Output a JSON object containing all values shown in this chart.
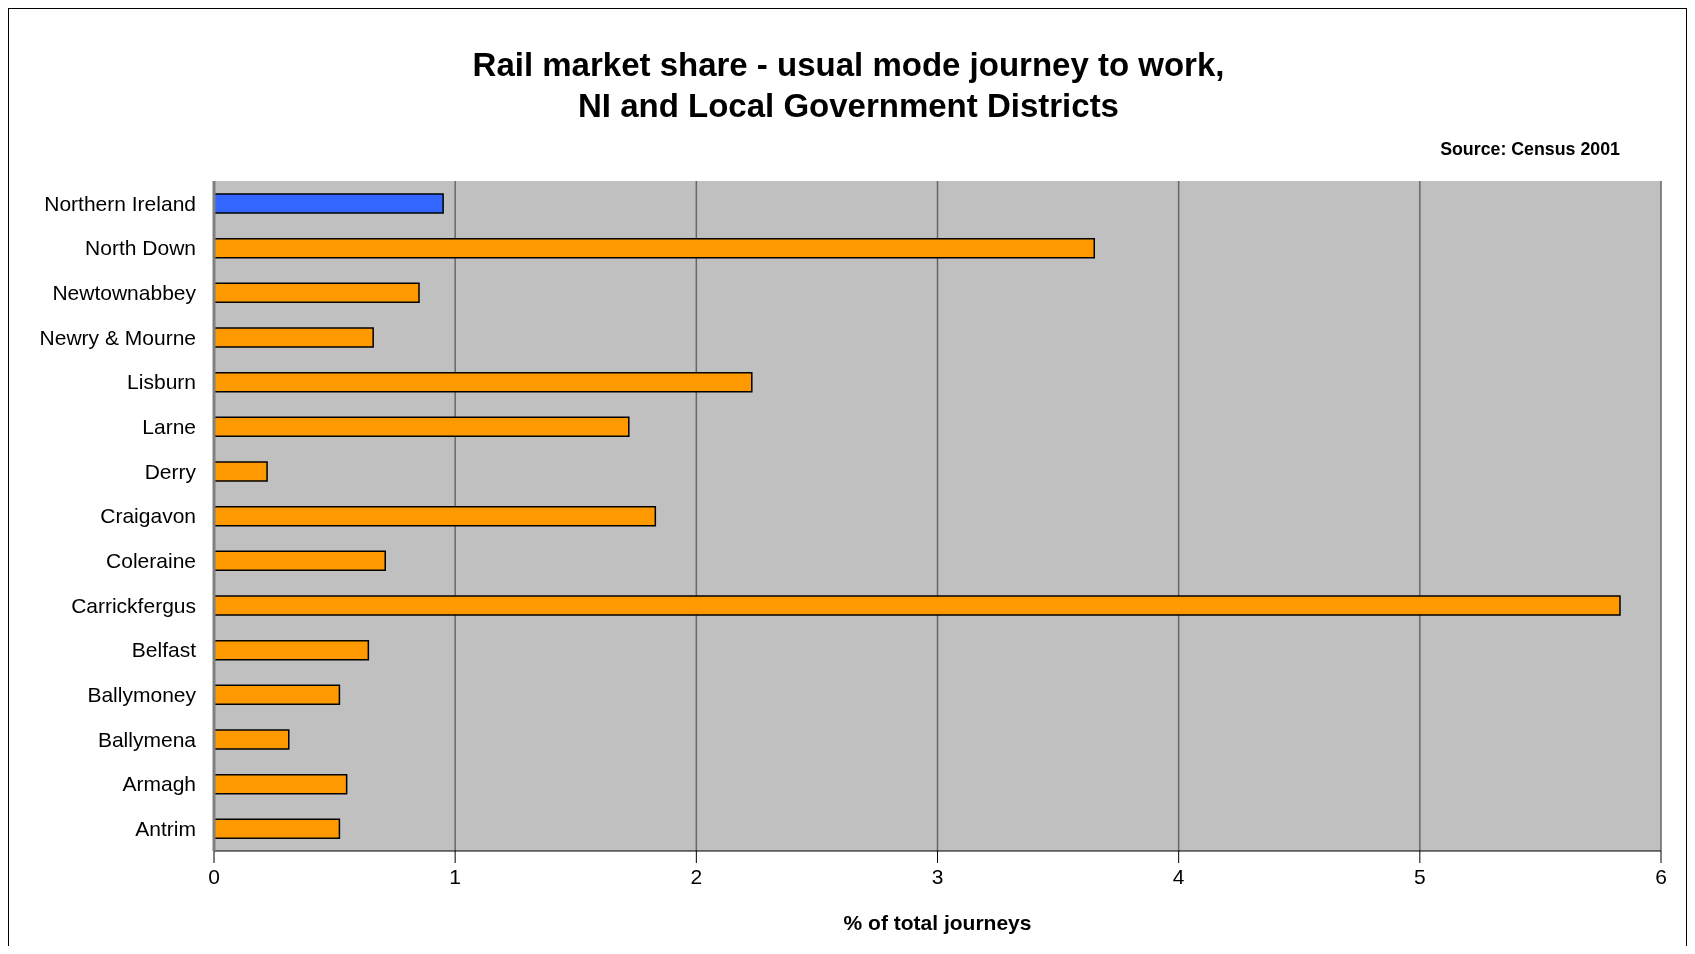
{
  "chart_data": {
    "type": "bar",
    "orientation": "horizontal",
    "title": "Rail market share - usual mode journey to work,\nNI and Local Government Districts",
    "xlabel": "% of total journeys",
    "annotations": [
      "Source: Census 2001"
    ],
    "categories": [
      "Northern Ireland",
      "North Down",
      "Newtownabbey",
      "Newry & Mourne",
      "Lisburn",
      "Larne",
      "Derry",
      "Craigavon",
      "Coleraine",
      "Carrickfergus",
      "Belfast",
      "Ballymoney",
      "Ballymena",
      "Armagh",
      "Antrim"
    ],
    "values": [
      0.95,
      3.65,
      0.85,
      0.66,
      2.23,
      1.72,
      0.22,
      1.83,
      0.71,
      5.83,
      0.64,
      0.52,
      0.31,
      0.55,
      0.52
    ],
    "colors": [
      "#3366ff",
      "#ff9900",
      "#ff9900",
      "#ff9900",
      "#ff9900",
      "#ff9900",
      "#ff9900",
      "#ff9900",
      "#ff9900",
      "#ff9900",
      "#ff9900",
      "#ff9900",
      "#ff9900",
      "#ff9900",
      "#ff9900"
    ],
    "xlim": [
      0,
      6
    ],
    "xticks": [
      0,
      1,
      2,
      3,
      4,
      5,
      6
    ],
    "grid": "x"
  }
}
